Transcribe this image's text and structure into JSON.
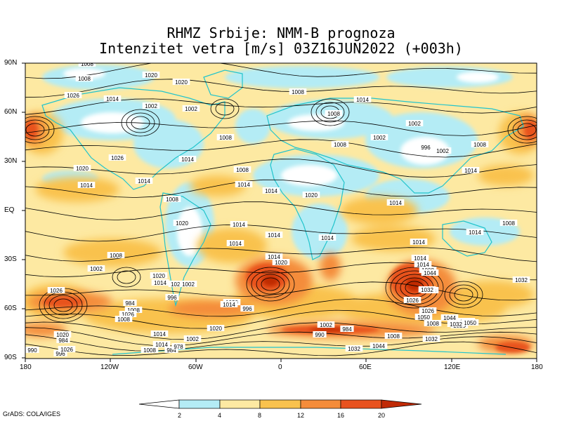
{
  "title": {
    "line1": "RHMZ Srbije: NMM-B prognoza",
    "line2": "Intenzitet vetra [m/s] 03Z16JUN2022 (+003h)"
  },
  "axes": {
    "lat_labels": [
      "90N",
      "60N",
      "30N",
      "EQ",
      "30S",
      "60S",
      "90S"
    ],
    "lon_labels": [
      "180",
      "120W",
      "60W",
      "0",
      "60E",
      "120E",
      "180"
    ]
  },
  "colorbar": {
    "levels": [
      "2",
      "4",
      "8",
      "12",
      "16",
      "20"
    ],
    "colors": [
      "#ffffff",
      "#b4ecf5",
      "#fde9a2",
      "#f9c24e",
      "#f48c3a",
      "#e8521f",
      "#c02a06"
    ]
  },
  "footer": "GrADS: COLA/IGES",
  "isobars": [
    {
      "v": "1008"
    },
    {
      "v": "1020"
    },
    {
      "v": "1008"
    },
    {
      "v": "1020"
    },
    {
      "v": "1026"
    },
    {
      "v": "1014"
    },
    {
      "v": "1002"
    },
    {
      "v": "1002"
    },
    {
      "v": "1008"
    },
    {
      "v": "1026"
    },
    {
      "v": "1020"
    },
    {
      "v": "1014"
    },
    {
      "v": "1014"
    },
    {
      "v": "1014"
    },
    {
      "v": "1008"
    },
    {
      "v": "1014"
    },
    {
      "v": "1020"
    },
    {
      "v": "1014"
    },
    {
      "v": "1014"
    },
    {
      "v": "1008"
    },
    {
      "v": "1008"
    },
    {
      "v": "1008"
    },
    {
      "v": "1014"
    },
    {
      "v": "1002"
    },
    {
      "v": "1002"
    },
    {
      "v": "996"
    },
    {
      "v": "1008"
    },
    {
      "v": "1002"
    },
    {
      "v": "1014"
    },
    {
      "v": "1008"
    },
    {
      "v": "1014"
    },
    {
      "v": "1014"
    },
    {
      "v": "1008"
    },
    {
      "v": "1020"
    },
    {
      "v": "1014"
    },
    {
      "v": "1014"
    },
    {
      "v": "1014"
    },
    {
      "v": "1014"
    },
    {
      "v": "1020"
    },
    {
      "v": "1014"
    },
    {
      "v": "1008"
    },
    {
      "v": "1002"
    },
    {
      "v": "1020"
    },
    {
      "v": "1014"
    },
    {
      "v": "1020"
    },
    {
      "v": "1002"
    },
    {
      "v": "996"
    },
    {
      "v": "1026"
    },
    {
      "v": "984"
    },
    {
      "v": "1008"
    },
    {
      "v": "1026"
    },
    {
      "v": "1008"
    },
    {
      "v": "1014"
    },
    {
      "v": "1002"
    },
    {
      "v": "1020"
    },
    {
      "v": "1014"
    },
    {
      "v": "996"
    },
    {
      "v": "1020"
    },
    {
      "v": "984"
    },
    {
      "v": "1020"
    },
    {
      "v": "990"
    },
    {
      "v": "1002"
    },
    {
      "v": "984"
    },
    {
      "v": "1032"
    },
    {
      "v": "1044"
    },
    {
      "v": "1008"
    },
    {
      "v": "1032"
    },
    {
      "v": "1008"
    },
    {
      "v": "1020"
    },
    {
      "v": "1050"
    },
    {
      "v": "1050"
    },
    {
      "v": "1026"
    },
    {
      "v": "1038"
    },
    {
      "v": "1014"
    },
    {
      "v": "1014"
    },
    {
      "v": "1008"
    },
    {
      "v": "1044"
    },
    {
      "v": "1032"
    },
    {
      "v": "1026"
    },
    {
      "v": "1050"
    },
    {
      "v": "1032"
    },
    {
      "v": "1044"
    },
    {
      "v": "1014"
    },
    {
      "v": "1008"
    },
    {
      "v": "984"
    },
    {
      "v": "978"
    },
    {
      "v": "990"
    },
    {
      "v": "996"
    },
    {
      "v": "1026"
    },
    {
      "v": "1032"
    }
  ]
}
